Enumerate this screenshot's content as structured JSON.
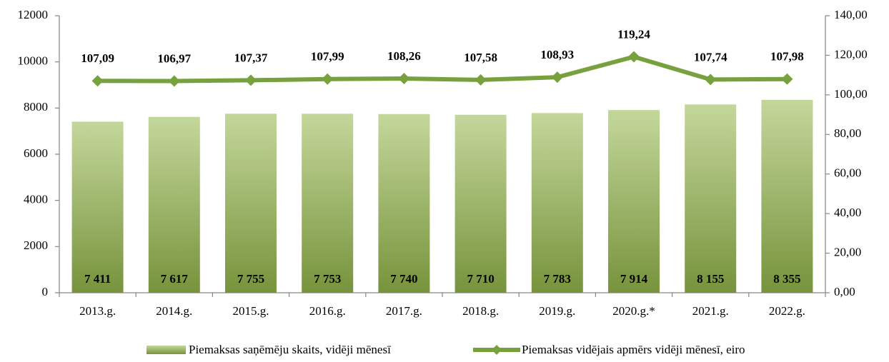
{
  "chart_data": {
    "type": "combo",
    "categories": [
      "2013.g.",
      "2014.g.",
      "2015.g.",
      "2016.g.",
      "2017.g.",
      "2018.g.",
      "2019.g.",
      "2020.g.*",
      "2021.g.",
      "2022.g."
    ],
    "series": [
      {
        "name": "Piemaksas saņēmēju skaits, vidēji mēnesī",
        "type": "bar",
        "color": "#9bbb59",
        "values": [
          7411,
          7617,
          7755,
          7753,
          7740,
          7710,
          7783,
          7914,
          8155,
          8355
        ],
        "value_labels": [
          "7 411",
          "7 617",
          "7 755",
          "7 753",
          "7 740",
          "7 710",
          "7 783",
          "7 914",
          "8 155",
          "8 355"
        ]
      },
      {
        "name": "Piemaksas vidējais apmērs vidēji mēnesī, eiro",
        "type": "line",
        "axis": "y2",
        "color": "#77a13d",
        "values": [
          107.09,
          106.97,
          107.37,
          107.99,
          108.26,
          107.58,
          108.93,
          119.24,
          107.74,
          107.98
        ],
        "value_labels": [
          "107,09",
          "106,97",
          "107,37",
          "107,99",
          "108,26",
          "107,58",
          "108,93",
          "119,24",
          "107,74",
          "107,98"
        ]
      }
    ],
    "ylim": [
      0,
      12000
    ],
    "yticks": [
      0,
      2000,
      4000,
      6000,
      8000,
      10000,
      12000
    ],
    "y2lim": [
      0,
      140
    ],
    "y2ticks": [
      {
        "value": 0,
        "label": "0,00"
      },
      {
        "value": 20,
        "label": "20,00"
      },
      {
        "value": 40,
        "label": "40,00"
      },
      {
        "value": 60,
        "label": "60,00"
      },
      {
        "value": 80,
        "label": "80,00"
      },
      {
        "value": 100,
        "label": "100,00"
      },
      {
        "value": 120,
        "label": "120,00"
      },
      {
        "value": 140,
        "label": "140,00"
      }
    ],
    "grid": false,
    "legend": "bottom"
  }
}
